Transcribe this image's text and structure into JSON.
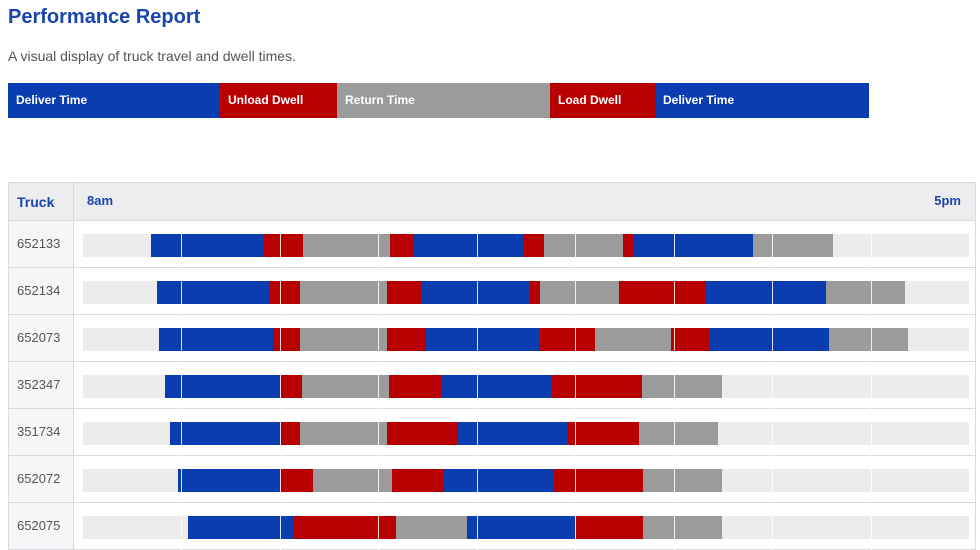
{
  "page": {
    "title": "Performance Report",
    "subtitle": "A visual display of truck travel and dwell times."
  },
  "colors": {
    "deliver": "#0a3db0",
    "dwell": "#b80000",
    "return": "#9b9b9b",
    "track": "#ececec",
    "accent": "#1a45ad"
  },
  "legend": [
    {
      "label": "Deliver Time",
      "kind": "deliver",
      "share": 0.2465
    },
    {
      "label": "Unload Dwell",
      "kind": "dwell",
      "share": 0.1359
    },
    {
      "label": "Return Time",
      "kind": "return",
      "share": 0.2474
    },
    {
      "label": "Load Dwell",
      "kind": "dwell",
      "share": 0.122
    },
    {
      "label": "Deliver Time",
      "kind": "deliver",
      "share": 0.2482
    }
  ],
  "table": {
    "truck_header": "Truck",
    "time_start": "8am",
    "time_end": "5pm",
    "rows": [
      {
        "truck": "652133",
        "segments": [
          {
            "kind": "deliver",
            "start": 0.077,
            "end": 0.204
          },
          {
            "kind": "dwell",
            "start": 0.204,
            "end": 0.248
          },
          {
            "kind": "return",
            "start": 0.248,
            "end": 0.346
          },
          {
            "kind": "dwell",
            "start": 0.346,
            "end": 0.373
          },
          {
            "kind": "deliver",
            "start": 0.373,
            "end": 0.497
          },
          {
            "kind": "dwell",
            "start": 0.497,
            "end": 0.52
          },
          {
            "kind": "return",
            "start": 0.52,
            "end": 0.609
          },
          {
            "kind": "dwell",
            "start": 0.609,
            "end": 0.621
          },
          {
            "kind": "deliver",
            "start": 0.621,
            "end": 0.756
          },
          {
            "kind": "return",
            "start": 0.756,
            "end": 0.846
          }
        ]
      },
      {
        "truck": "652134",
        "segments": [
          {
            "kind": "deliver",
            "start": 0.083,
            "end": 0.21
          },
          {
            "kind": "dwell",
            "start": 0.21,
            "end": 0.245
          },
          {
            "kind": "return",
            "start": 0.245,
            "end": 0.343
          },
          {
            "kind": "dwell",
            "start": 0.343,
            "end": 0.382
          },
          {
            "kind": "deliver",
            "start": 0.382,
            "end": 0.505
          },
          {
            "kind": "dwell",
            "start": 0.505,
            "end": 0.516
          },
          {
            "kind": "return",
            "start": 0.516,
            "end": 0.605
          },
          {
            "kind": "dwell",
            "start": 0.605,
            "end": 0.703
          },
          {
            "kind": "deliver",
            "start": 0.703,
            "end": 0.839
          },
          {
            "kind": "return",
            "start": 0.839,
            "end": 0.928
          }
        ]
      },
      {
        "truck": "652073",
        "segments": [
          {
            "kind": "deliver",
            "start": 0.086,
            "end": 0.214
          },
          {
            "kind": "dwell",
            "start": 0.214,
            "end": 0.245
          },
          {
            "kind": "return",
            "start": 0.245,
            "end": 0.343
          },
          {
            "kind": "dwell",
            "start": 0.343,
            "end": 0.387
          },
          {
            "kind": "deliver",
            "start": 0.387,
            "end": 0.516
          },
          {
            "kind": "dwell",
            "start": 0.516,
            "end": 0.578
          },
          {
            "kind": "return",
            "start": 0.578,
            "end": 0.664
          },
          {
            "kind": "dwell",
            "start": 0.664,
            "end": 0.706
          },
          {
            "kind": "deliver",
            "start": 0.706,
            "end": 0.842
          },
          {
            "kind": "return",
            "start": 0.842,
            "end": 0.931
          }
        ]
      },
      {
        "truck": "352347",
        "segments": [
          {
            "kind": "deliver",
            "start": 0.092,
            "end": 0.221
          },
          {
            "kind": "dwell",
            "start": 0.221,
            "end": 0.247
          },
          {
            "kind": "return",
            "start": 0.247,
            "end": 0.345
          },
          {
            "kind": "dwell",
            "start": 0.345,
            "end": 0.404
          },
          {
            "kind": "deliver",
            "start": 0.404,
            "end": 0.528
          },
          {
            "kind": "dwell",
            "start": 0.528,
            "end": 0.631
          },
          {
            "kind": "return",
            "start": 0.631,
            "end": 0.721
          }
        ]
      },
      {
        "truck": "351734",
        "segments": [
          {
            "kind": "deliver",
            "start": 0.098,
            "end": 0.224
          },
          {
            "kind": "dwell",
            "start": 0.224,
            "end": 0.245
          },
          {
            "kind": "return",
            "start": 0.245,
            "end": 0.343
          },
          {
            "kind": "dwell",
            "start": 0.343,
            "end": 0.423
          },
          {
            "kind": "deliver",
            "start": 0.423,
            "end": 0.547
          },
          {
            "kind": "dwell",
            "start": 0.547,
            "end": 0.628
          },
          {
            "kind": "return",
            "start": 0.628,
            "end": 0.717
          }
        ]
      },
      {
        "truck": "652072",
        "segments": [
          {
            "kind": "deliver",
            "start": 0.107,
            "end": 0.222
          },
          {
            "kind": "dwell",
            "start": 0.222,
            "end": 0.26
          },
          {
            "kind": "return",
            "start": 0.26,
            "end": 0.349
          },
          {
            "kind": "dwell",
            "start": 0.349,
            "end": 0.408
          },
          {
            "kind": "deliver",
            "start": 0.408,
            "end": 0.532
          },
          {
            "kind": "dwell",
            "start": 0.532,
            "end": 0.632
          },
          {
            "kind": "return",
            "start": 0.632,
            "end": 0.721
          }
        ]
      },
      {
        "truck": "652075",
        "segments": [
          {
            "kind": "deliver",
            "start": 0.118,
            "end": 0.237
          },
          {
            "kind": "dwell",
            "start": 0.237,
            "end": 0.353
          },
          {
            "kind": "return",
            "start": 0.353,
            "end": 0.433
          },
          {
            "kind": "deliver",
            "start": 0.433,
            "end": 0.556
          },
          {
            "kind": "dwell",
            "start": 0.556,
            "end": 0.632
          },
          {
            "kind": "return",
            "start": 0.632,
            "end": 0.721
          }
        ]
      }
    ]
  }
}
